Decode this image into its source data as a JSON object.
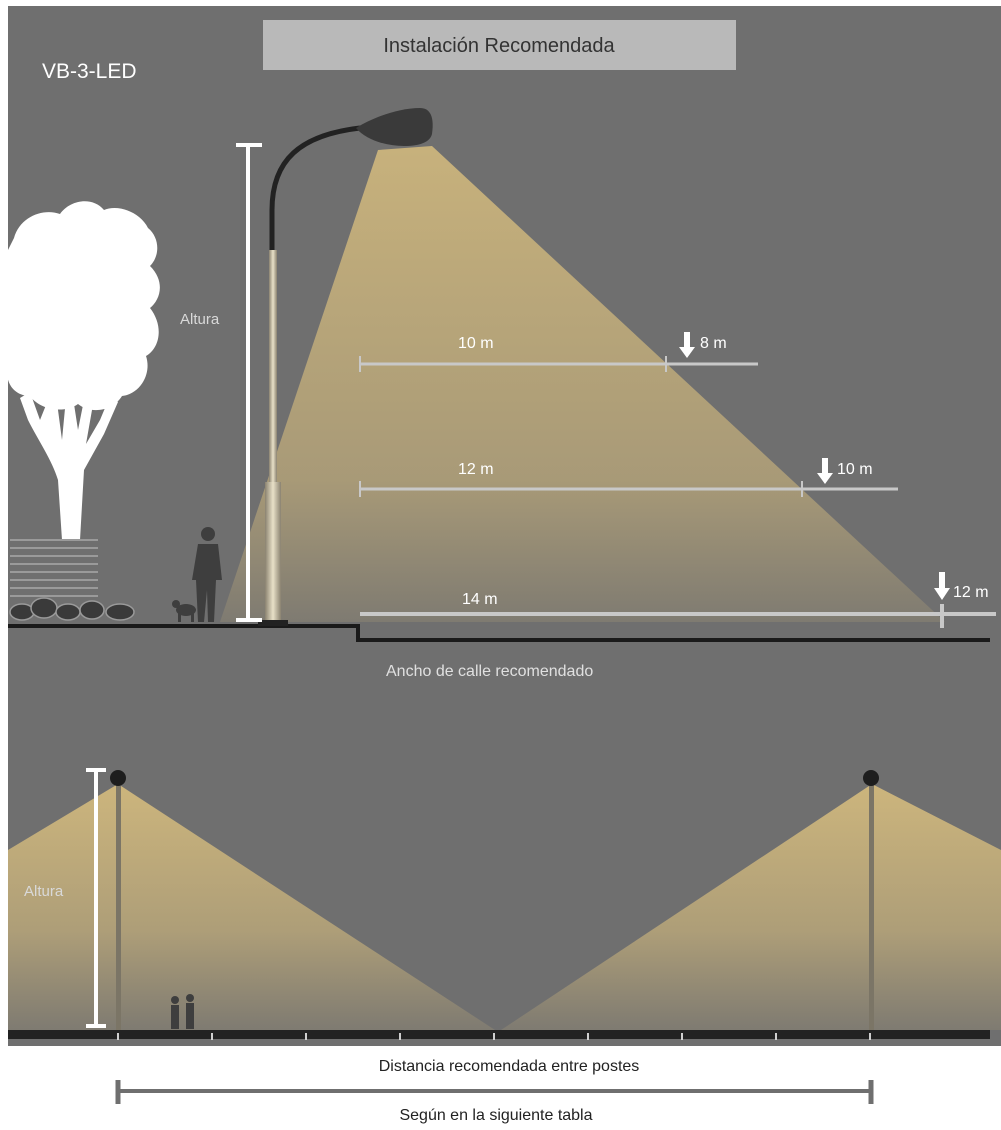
{
  "header": {
    "title": "Instalación Recomendada",
    "model": "VB-3-LED"
  },
  "side_view": {
    "height_label": "Altura",
    "street_width_label": "Ancho de calle recomendado",
    "street_widths": [
      {
        "width": "10 m",
        "pole_height": "8 m"
      },
      {
        "width": "12 m",
        "pole_height": "10 m"
      },
      {
        "width": "14 m",
        "pole_height": "12 m"
      }
    ]
  },
  "front_view": {
    "height_label": "Altura",
    "distance_label": "Distancia recomendada entre postes",
    "table_note": "Según en la siguiente tabla"
  },
  "colors": {
    "background": "#6f6f6f",
    "light_beam": "#d7bd7e",
    "ground": "#1a1a1a",
    "measure_line": "#c8c8c8",
    "text_light": "#ffffff",
    "text_muted": "#d9d9d9",
    "caption_text": "#222222",
    "title_box": "#b9b9b9"
  }
}
